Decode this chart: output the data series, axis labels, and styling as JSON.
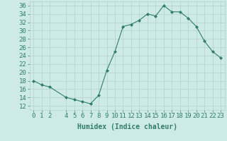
{
  "x": [
    0,
    1,
    2,
    4,
    5,
    6,
    7,
    8,
    9,
    10,
    11,
    12,
    13,
    14,
    15,
    16,
    17,
    18,
    19,
    20,
    21,
    22,
    23
  ],
  "y": [
    18,
    17,
    16.5,
    14,
    13.5,
    13,
    12.5,
    14.5,
    20.5,
    25,
    31,
    31.5,
    32.5,
    34,
    33.5,
    36,
    34.5,
    34.5,
    33,
    31,
    27.5,
    25,
    23.5
  ],
  "line_color": "#2e7d6e",
  "marker": "D",
  "marker_size": 2,
  "background_color": "#ceeae6",
  "grid_color": "#b0d0cc",
  "xlabel": "Humidex (Indice chaleur)",
  "xlim": [
    -0.5,
    23.5
  ],
  "ylim": [
    11,
    37
  ],
  "yticks": [
    12,
    14,
    16,
    18,
    20,
    22,
    24,
    26,
    28,
    30,
    32,
    34,
    36
  ],
  "xticks": [
    0,
    1,
    2,
    4,
    5,
    6,
    7,
    8,
    9,
    10,
    11,
    12,
    13,
    14,
    15,
    16,
    17,
    18,
    19,
    20,
    21,
    22,
    23
  ],
  "tick_color": "#2e7d6e",
  "label_color": "#2e7d6e",
  "font_size": 6.5
}
